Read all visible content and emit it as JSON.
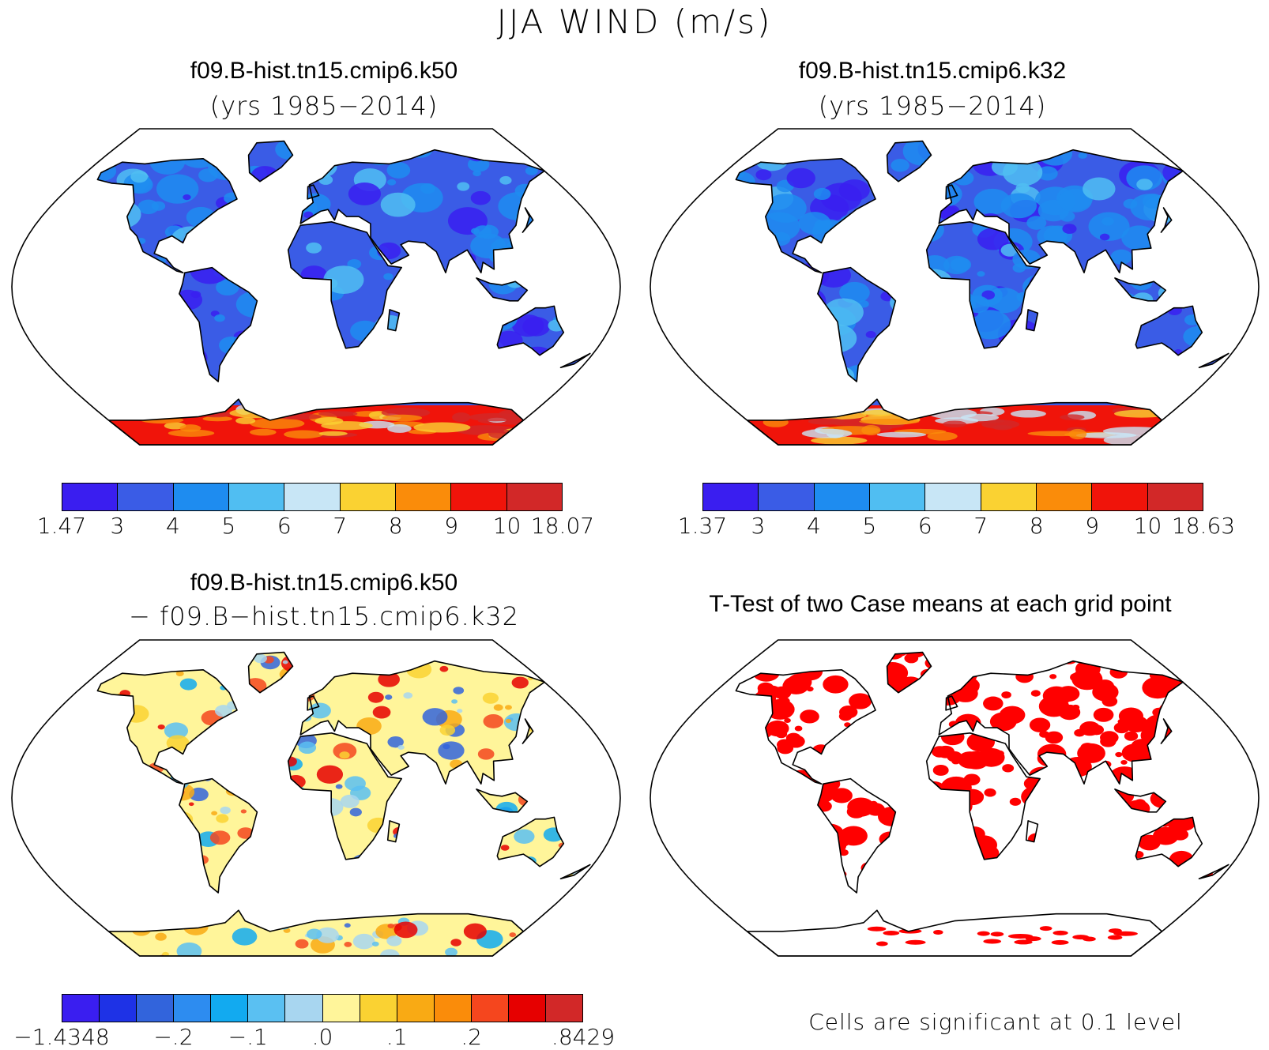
{
  "title": "JJA WIND (m/s)",
  "panels": [
    {
      "id": "k50",
      "title": "f09.B-hist.tn15.cmip6.k50",
      "subtitle": "(yrs 1985−2014)",
      "colorbar": {
        "colors": [
          "#3a1ef0",
          "#3a5ce6",
          "#1e8cf0",
          "#50bef2",
          "#c8e6f6",
          "#fad232",
          "#fa8c0a",
          "#f0140a",
          "#d22828"
        ],
        "labels": [
          "1.47",
          "3",
          "4",
          "5",
          "6",
          "7",
          "8",
          "9",
          "10",
          "18.07"
        ]
      }
    },
    {
      "id": "k32",
      "title": "f09.B-hist.tn15.cmip6.k32",
      "subtitle": "(yrs 1985−2014)",
      "colorbar": {
        "colors": [
          "#3a1ef0",
          "#3a5ce6",
          "#1e8cf0",
          "#50bef2",
          "#c8e6f6",
          "#fad232",
          "#fa8c0a",
          "#f0140a",
          "#d22828"
        ],
        "labels": [
          "1.37",
          "3",
          "4",
          "5",
          "6",
          "7",
          "8",
          "9",
          "10",
          "18.63"
        ]
      }
    },
    {
      "id": "diff",
      "title": "f09.B-hist.tn15.cmip6.k50",
      "subtitle": "− f09.B−hist.tn15.cmip6.k32",
      "colorbar": {
        "colors": [
          "#3a1ef0",
          "#1e32e6",
          "#3264dc",
          "#2d8cf0",
          "#12aaf0",
          "#5ac0f2",
          "#a8d6f0",
          "#fff59a",
          "#fad232",
          "#f9aa14",
          "#fa8c0a",
          "#f5461e",
          "#e60000",
          "#d22828"
        ],
        "labels": [
          "−1.4348",
          "−.2",
          "−.1",
          ".0",
          ".1",
          ".2",
          ".8429"
        ]
      }
    },
    {
      "id": "ttest",
      "title": "T-Test of two Case means at each grid point",
      "note": "Cells are significant at 0.1 level",
      "colors": {
        "significant": "#ff0000"
      }
    }
  ]
}
